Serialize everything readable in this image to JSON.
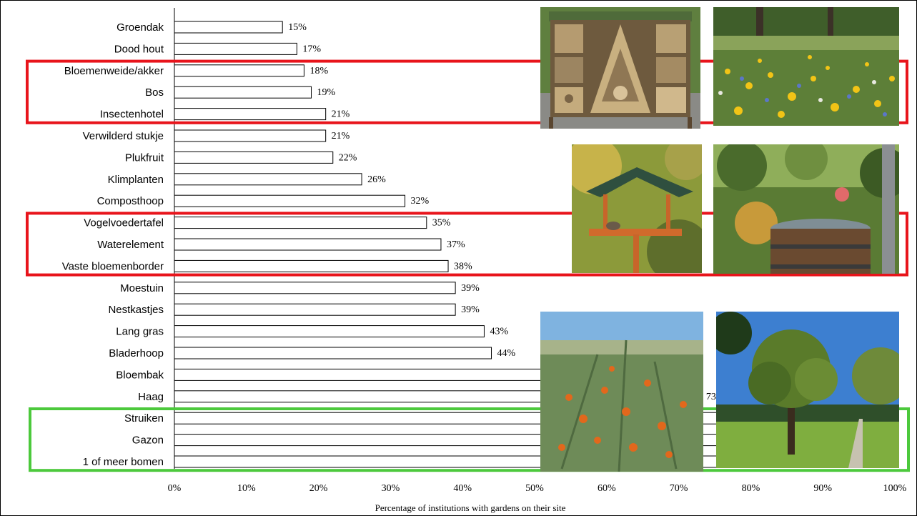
{
  "chart_data": {
    "type": "bar",
    "orientation": "horizontal",
    "categories": [
      "Groendak",
      "Dood hout",
      "Bloemenweide/akker",
      "Bos",
      "Insectenhotel",
      "Verwilderd stukje",
      "Plukfruit",
      "Klimplanten",
      "Composthoop",
      "Vogelvoedertafel",
      "Waterelement",
      "Vaste bloemenborder",
      "Moestuin",
      "Nestkastjes",
      "Lang gras",
      "Bladerhoop",
      "Bloembak",
      "Haag",
      "Struiken",
      "Gazon",
      "1 of meer bomen"
    ],
    "values": [
      15,
      17,
      18,
      19,
      21,
      21,
      22,
      26,
      32,
      35,
      37,
      38,
      39,
      39,
      43,
      44,
      58,
      73,
      80,
      85,
      92
    ],
    "value_labels": [
      "15%",
      "17%",
      "18%",
      "19%",
      "21%",
      "21%",
      "22%",
      "26%",
      "32%",
      "35%",
      "37%",
      "38%",
      "39%",
      "39%",
      "43%",
      "44%",
      "",
      "73",
      "",
      "",
      ""
    ],
    "xlim": [
      0,
      100
    ],
    "xticks": [
      "0%",
      "10%",
      "20%",
      "30%",
      "40%",
      "50%",
      "60%",
      "70%",
      "80%",
      "90%",
      "100%"
    ],
    "xlabel": "Percentage of institutions  with gardens on their site",
    "grid": false,
    "highlight_groups": [
      {
        "color": "#e8141b",
        "categories": [
          "Bloemenweide/akker",
          "Bos",
          "Insectenhotel"
        ]
      },
      {
        "color": "#e8141b",
        "categories": [
          "Vogelvoedertafel",
          "Waterelement",
          "Vaste bloemenborder"
        ]
      },
      {
        "color": "#4cc93c",
        "categories": [
          "Struiken",
          "Gazon",
          "1 of meer bomen"
        ]
      }
    ]
  },
  "photos": [
    {
      "name": "insect-hotel-photo"
    },
    {
      "name": "flower-meadow-photo"
    },
    {
      "name": "bird-feeder-photo"
    },
    {
      "name": "water-barrel-garden-photo"
    },
    {
      "name": "sea-buckthorn-shrub-photo"
    },
    {
      "name": "tree-on-lawn-photo"
    }
  ]
}
